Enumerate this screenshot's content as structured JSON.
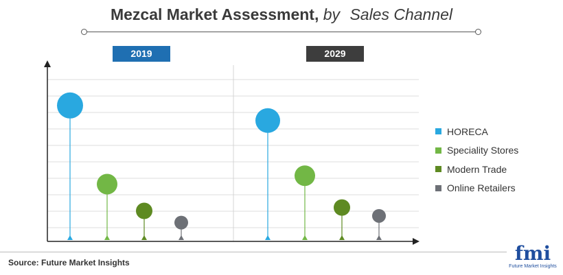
{
  "title": {
    "main": "Mezcal Market Assessment",
    "separator": ",",
    "by": "by",
    "subject": "Sales Channel"
  },
  "years": [
    "2019",
    "2029"
  ],
  "chart_data": {
    "type": "scatter",
    "title": "Mezcal Market Assessment, by Sales Channel",
    "groups": [
      "2019",
      "2029"
    ],
    "series": [
      {
        "name": "HORECA",
        "color": "#29a8e0",
        "values": [
          8.0,
          7.1
        ]
      },
      {
        "name": "Speciality Stores",
        "color": "#72b745",
        "values": [
          3.3,
          3.8
        ]
      },
      {
        "name": "Modern Trade",
        "color": "#5e8a22",
        "values": [
          1.7,
          1.9
        ]
      },
      {
        "name": "Online Retailers",
        "color": "#6d7076",
        "values": [
          1.0,
          1.4
        ]
      }
    ],
    "ylim": [
      0,
      10
    ],
    "grid": true,
    "legend": "right"
  },
  "source": "Source: Future Market Insights",
  "logo": {
    "name": "fmi",
    "tagline": "Future Market Insights"
  }
}
